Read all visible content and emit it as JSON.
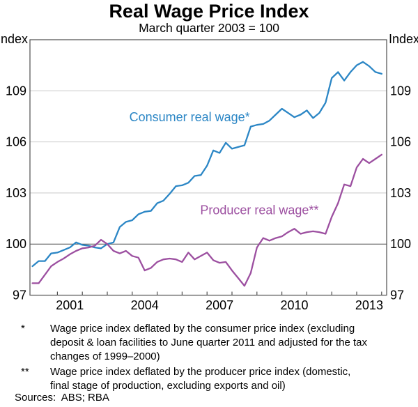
{
  "header": {
    "title": "Real Wage Price Index",
    "subtitle": "March quarter 2003 = 100"
  },
  "axis": {
    "unit_label": "Index"
  },
  "footnotes": [
    {
      "marker": "*",
      "text": "Wage price index deflated by the consumer price index (excluding\ndeposit & loan facilities to June quarter 2011 and adjusted for the tax\nchanges of 1999–2000)"
    },
    {
      "marker": "**",
      "text": "Wage price index deflated by the producer price index (domestic,\nfinal stage of production, excluding exports and oil)"
    }
  ],
  "sources": "Sources:  ABS; RBA",
  "chart_data": {
    "type": "line",
    "title": "Real Wage Price Index",
    "subtitle": "March quarter 2003 = 100",
    "x_unit": "year (quarterly observations)",
    "x": [
      2000.0,
      2000.25,
      2000.5,
      2000.75,
      2001.0,
      2001.25,
      2001.5,
      2001.75,
      2002.0,
      2002.25,
      2002.5,
      2002.75,
      2003.0,
      2003.25,
      2003.5,
      2003.75,
      2004.0,
      2004.25,
      2004.5,
      2004.75,
      2005.0,
      2005.25,
      2005.5,
      2005.75,
      2006.0,
      2006.25,
      2006.5,
      2006.75,
      2007.0,
      2007.25,
      2007.5,
      2007.75,
      2008.0,
      2008.25,
      2008.5,
      2008.75,
      2009.0,
      2009.25,
      2009.5,
      2009.75,
      2010.0,
      2010.25,
      2010.5,
      2010.75,
      2011.0,
      2011.25,
      2011.5,
      2011.75,
      2012.0,
      2012.25,
      2012.5,
      2012.75,
      2013.0,
      2013.25,
      2013.5,
      2013.75,
      2014.0
    ],
    "series": [
      {
        "name": "Consumer real wage*",
        "color": "#2b86c5",
        "values": [
          98.7,
          99.0,
          99.0,
          99.45,
          99.5,
          99.65,
          99.8,
          100.1,
          99.95,
          99.9,
          99.8,
          99.75,
          100.0,
          100.1,
          101.0,
          101.3,
          101.4,
          101.75,
          101.9,
          101.95,
          102.4,
          102.55,
          102.95,
          103.4,
          103.45,
          103.6,
          104.0,
          104.05,
          104.6,
          105.5,
          105.35,
          105.95,
          105.6,
          105.7,
          105.8,
          106.9,
          107.0,
          107.05,
          107.25,
          107.6,
          107.95,
          107.7,
          107.45,
          107.6,
          107.85,
          107.4,
          107.7,
          108.3,
          109.75,
          110.1,
          109.6,
          110.1,
          110.5,
          110.7,
          110.45,
          110.1,
          110.0
        ]
      },
      {
        "name": "Producer real wage**",
        "color": "#9c4fa0",
        "values": [
          97.7,
          97.7,
          98.2,
          98.7,
          98.95,
          99.15,
          99.4,
          99.6,
          99.75,
          99.8,
          99.9,
          100.25,
          100.0,
          99.6,
          99.45,
          99.6,
          99.3,
          99.2,
          98.45,
          98.6,
          98.95,
          99.1,
          99.15,
          99.1,
          98.95,
          99.5,
          99.1,
          99.3,
          99.5,
          99.05,
          98.9,
          98.95,
          98.45,
          98.0,
          97.55,
          98.3,
          99.8,
          100.35,
          100.2,
          100.35,
          100.45,
          100.7,
          100.9,
          100.6,
          100.7,
          100.75,
          100.7,
          100.6,
          101.6,
          102.4,
          103.5,
          103.4,
          104.5,
          105.0,
          104.75,
          105.0,
          105.25
        ]
      }
    ],
    "annotations": [
      {
        "text": "Consumer real wage*",
        "x": 2006.3,
        "y": 107.45,
        "series": 0
      },
      {
        "text": "Producer real wage**",
        "x": 2009.1,
        "y": 102.0,
        "series": 1
      }
    ],
    "xlim": [
      1999.9,
      2014.2
    ],
    "ylim": [
      97,
      112
    ],
    "yticks": [
      97,
      100,
      103,
      106,
      109
    ],
    "ytick_both_sides": true,
    "xticks": [
      2001,
      2002,
      2003,
      2004,
      2005,
      2006,
      2007,
      2008,
      2009,
      2010,
      2011,
      2012,
      2013,
      2014
    ],
    "xlabels": [
      2001,
      2004,
      2007,
      2010,
      2013
    ],
    "baseline_value": 100,
    "grid": "horizontal",
    "colors": {
      "grid": "#c9c9c9",
      "frame": "#4d4d4d",
      "baseline": "#4d4d4d",
      "text": "#000000"
    }
  }
}
